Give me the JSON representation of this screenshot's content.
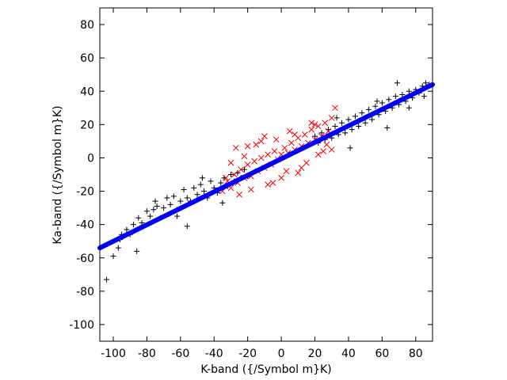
{
  "chart_data": {
    "type": "scatter",
    "title": "",
    "xlabel": "K-band ({/Symbol m}K)",
    "ylabel": "Ka-band ({/Symbol m}K)",
    "xlim": [
      -108,
      90
    ],
    "ylim": [
      -110,
      90
    ],
    "xticks": [
      -100,
      -80,
      -60,
      -40,
      -20,
      0,
      20,
      40,
      60,
      80
    ],
    "yticks": [
      -100,
      -80,
      -60,
      -40,
      -20,
      0,
      20,
      40,
      60,
      80
    ],
    "grid": false,
    "legend": "none",
    "series": [
      {
        "marker": "plus",
        "color": "#000000",
        "x": [
          -100,
          -97,
          -95,
          -92,
          -90,
          -88,
          -85,
          -83,
          -80,
          -78,
          -76,
          -74,
          -72,
          -70,
          -68,
          -66,
          -64,
          -62,
          -60,
          -58,
          -56,
          -54,
          -52,
          -50,
          -48,
          -46,
          -44,
          -42,
          -40,
          -38,
          -36,
          -34,
          -32,
          -30,
          -28,
          -26,
          -24,
          -22,
          -20,
          20,
          22,
          24,
          26,
          28,
          30,
          32,
          34,
          36,
          38,
          40,
          42,
          44,
          46,
          48,
          50,
          52,
          54,
          56,
          58,
          60,
          62,
          64,
          66,
          68,
          70,
          72,
          74,
          76,
          78,
          80,
          82,
          84,
          86,
          -104,
          -96,
          -86,
          -84,
          -62,
          -75,
          -56,
          -47,
          -35,
          33,
          41,
          57,
          63,
          69,
          76,
          85,
          88
        ],
        "y": [
          -59,
          -54,
          -46,
          -43,
          -46,
          -40,
          -36,
          -39,
          -32,
          -35,
          -31,
          -29,
          -36,
          -30,
          -24,
          -28,
          -23,
          -31,
          -26,
          -19,
          -24,
          -26,
          -18,
          -22,
          -16,
          -20,
          -24,
          -14,
          -18,
          -21,
          -15,
          -12,
          -17,
          -10,
          -14,
          -9,
          -12,
          -7,
          -11,
          13,
          9,
          15,
          11,
          17,
          12,
          19,
          14,
          21,
          15,
          23,
          17,
          25,
          19,
          27,
          21,
          29,
          23,
          31,
          26,
          33,
          28,
          35,
          30,
          37,
          32,
          38,
          34,
          40,
          36,
          41,
          39,
          43,
          45,
          -73,
          -49,
          -56,
          -42,
          -35,
          -26,
          -41,
          -12,
          -27,
          24,
          6,
          34,
          18,
          45,
          30,
          37,
          44
        ]
      },
      {
        "marker": "x",
        "color": "#ff0000",
        "x": [
          -35,
          -32,
          -30,
          -28,
          -26,
          -24,
          -22,
          -20,
          -18,
          -16,
          -14,
          -12,
          -10,
          -8,
          -6,
          -4,
          -2,
          0,
          2,
          4,
          6,
          8,
          10,
          12,
          14,
          16,
          18,
          20,
          22,
          24,
          26,
          28,
          30,
          -25,
          -15,
          -5,
          5,
          15,
          25,
          -20,
          -10,
          0,
          10,
          20,
          -30,
          30,
          -18,
          18,
          -8,
          8,
          -22,
          22,
          -12,
          12,
          -3,
          3,
          -33,
          32,
          -27,
          27
        ],
        "y": [
          -20,
          -14,
          -18,
          -10,
          -15,
          -7,
          -12,
          -4,
          -11,
          -2,
          -8,
          0,
          -6,
          2,
          -4,
          4,
          -1,
          2,
          6,
          3,
          9,
          5,
          12,
          7,
          14,
          9,
          17,
          11,
          19,
          13,
          21,
          16,
          24,
          -22,
          8,
          -15,
          16,
          -3,
          4,
          7,
          13,
          -12,
          -9,
          20,
          -3,
          5,
          -19,
          21,
          -16,
          14,
          1,
          2,
          10,
          -6,
          11,
          -8,
          -12,
          30,
          6,
          8
        ]
      },
      {
        "marker": "line",
        "color": "#0000ff",
        "x": [
          -108,
          90
        ],
        "y": [
          -54,
          44
        ]
      }
    ]
  }
}
